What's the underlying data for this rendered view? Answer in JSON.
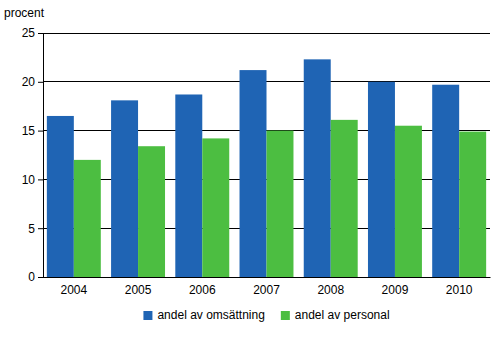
{
  "chart_data": {
    "type": "bar",
    "y_label": "procent",
    "categories": [
      "2004",
      "2005",
      "2006",
      "2007",
      "2008",
      "2009",
      "2010"
    ],
    "series": [
      {
        "name": "andel av omsättning",
        "color": "#1f64b4",
        "values": [
          16.5,
          18.1,
          18.7,
          21.2,
          22.3,
          20.0,
          19.7
        ]
      },
      {
        "name": "andel av personal",
        "color": "#4cbe41",
        "values": [
          12.0,
          13.4,
          14.2,
          15.0,
          16.1,
          15.5,
          14.9
        ]
      }
    ],
    "ylim": [
      0,
      25
    ],
    "yticks": [
      0,
      5,
      10,
      15,
      20,
      25
    ],
    "grid": true,
    "legend": "bottom"
  }
}
